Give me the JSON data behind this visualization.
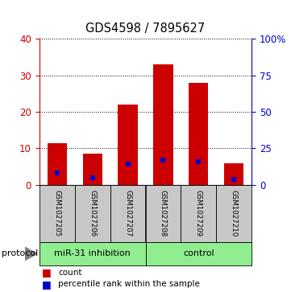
{
  "title": "GDS4598 / 7895627",
  "samples": [
    "GSM1027205",
    "GSM1027206",
    "GSM1027207",
    "GSM1027208",
    "GSM1027209",
    "GSM1027210"
  ],
  "counts": [
    11.5,
    8.5,
    22.0,
    33.0,
    28.0,
    6.0
  ],
  "percentile_ranks": [
    8.0,
    5.0,
    14.0,
    17.0,
    16.0,
    3.5
  ],
  "ylim_left": [
    0,
    40
  ],
  "ylim_right": [
    0,
    100
  ],
  "yticks_left": [
    0,
    10,
    20,
    30,
    40
  ],
  "yticks_right": [
    0,
    25,
    50,
    75,
    100
  ],
  "ytick_labels_right": [
    "0",
    "25",
    "50",
    "75",
    "100%"
  ],
  "bar_color": "#cc0000",
  "dot_color": "#0000cc",
  "bg_color": "#ffffff",
  "label_area_bg": "#c8c8c8",
  "protocol_label_bg": "#90ee90",
  "left_axis_color": "#cc0000",
  "right_axis_color": "#0000cc",
  "bar_width": 0.55,
  "dot_size": 18,
  "group_info": [
    {
      "label": "miR-31 inhibition",
      "start": 0,
      "end": 2
    },
    {
      "label": "control",
      "start": 3,
      "end": 5
    }
  ]
}
